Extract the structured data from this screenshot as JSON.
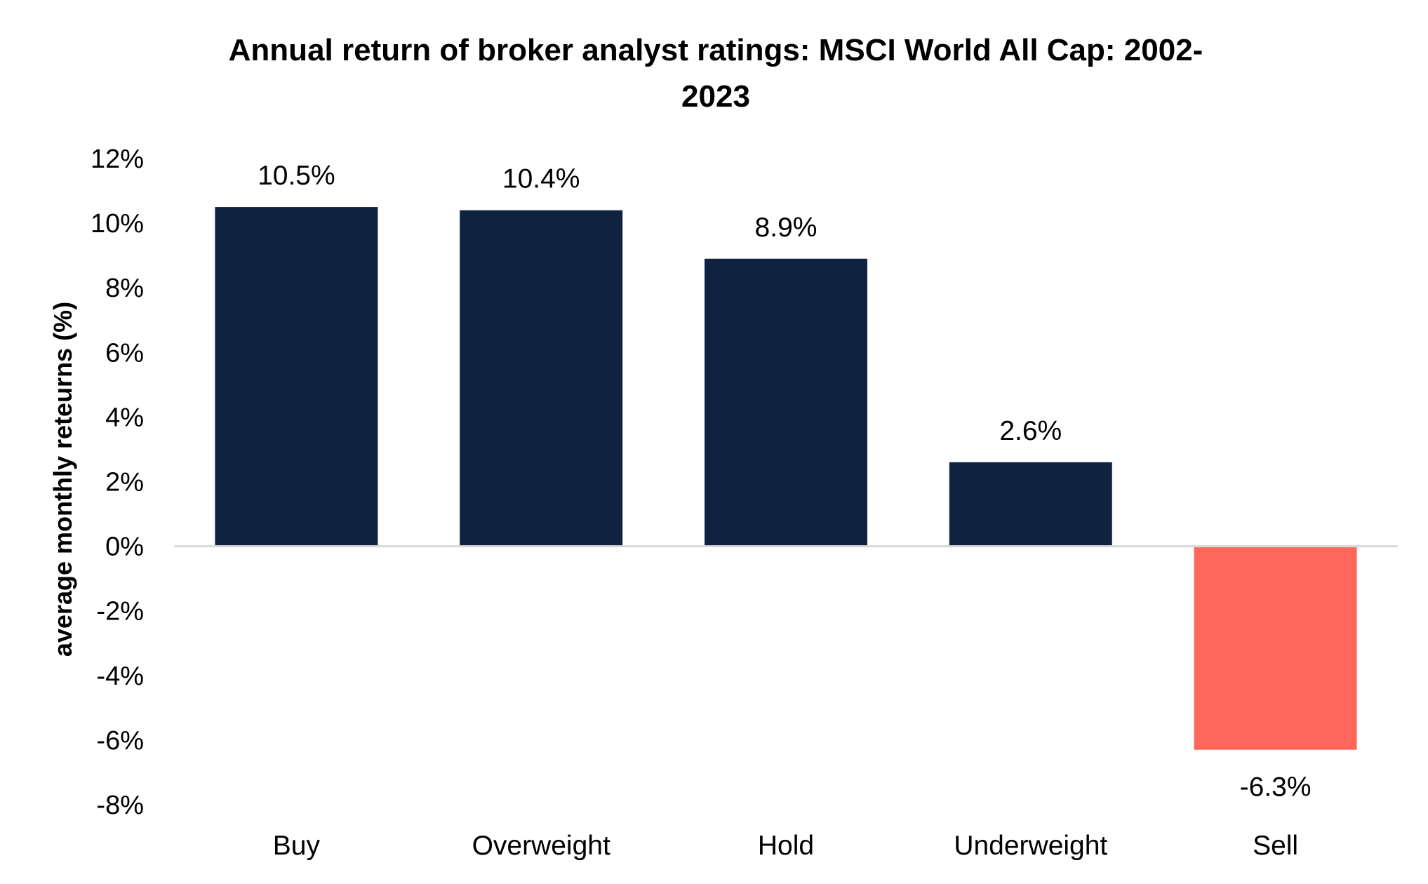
{
  "chart_data": {
    "type": "bar",
    "title": "Annual return of broker analyst ratings: MSCI World All Cap: 2002-2023",
    "title_lines": [
      "Annual return of broker analyst ratings: MSCI World All Cap: 2002-",
      "2023"
    ],
    "xlabel": "",
    "ylabel": "average monthly reteurns (%)",
    "categories": [
      "Buy",
      "Overweight",
      "Hold",
      "Underweight",
      "Sell"
    ],
    "values": [
      10.5,
      10.4,
      8.9,
      2.6,
      -6.3
    ],
    "data_labels": [
      "10.5%",
      "10.4%",
      "8.9%",
      "2.6%",
      "-6.3%"
    ],
    "ylim": [
      -8,
      12
    ],
    "yticks": [
      12,
      10,
      8,
      6,
      4,
      2,
      0,
      -2,
      -4,
      -6,
      -8
    ],
    "ytick_labels": [
      "12%",
      "10%",
      "8%",
      "6%",
      "4%",
      "2%",
      "0%",
      "-2%",
      "-4%",
      "-6%",
      "-8%"
    ],
    "grid": false,
    "legend": "none",
    "colors": {
      "positive": "#0f2240",
      "negative": "#ff665c",
      "axis": "#d9d9d9"
    }
  }
}
